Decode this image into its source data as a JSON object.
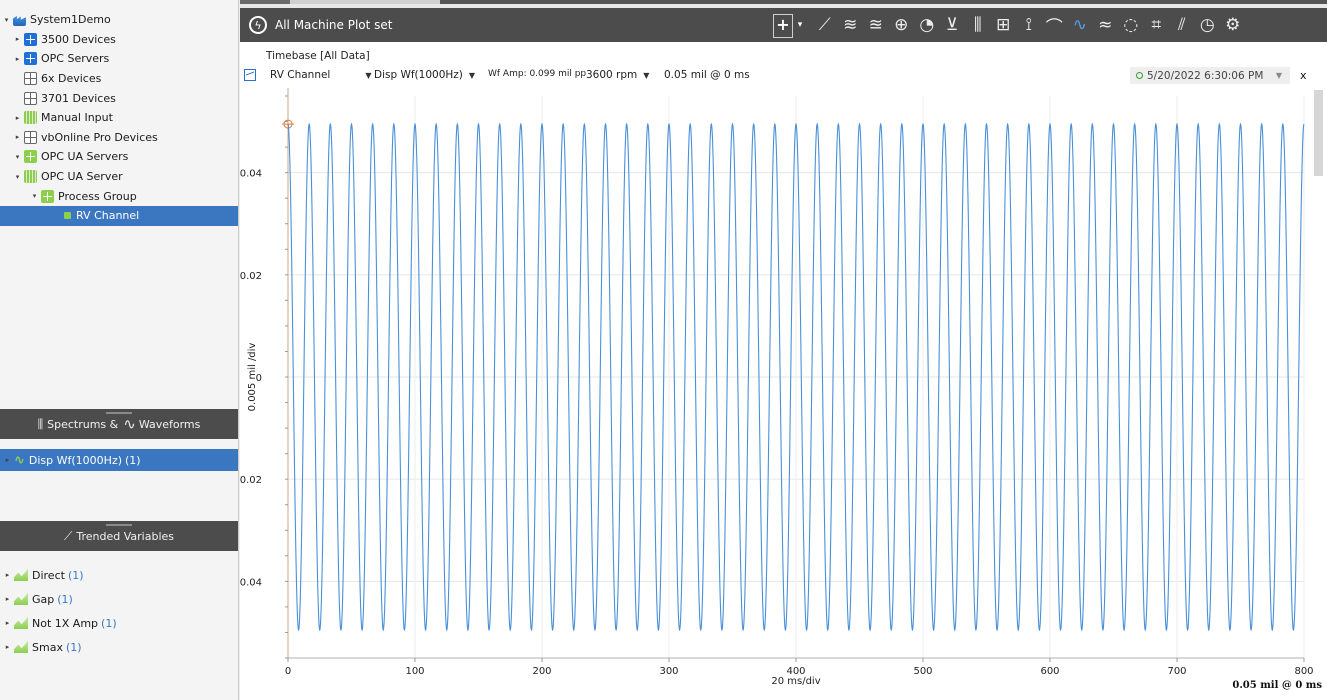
{
  "tree": {
    "items": [
      {
        "label": "System1Demo",
        "icon": "factory-icon",
        "icon_class": "ico-root",
        "depth": 0,
        "caret": "▾",
        "selected": false
      },
      {
        "label": "3500 Devices",
        "icon": "device-group-icon",
        "icon_class": "ico-blue",
        "depth": 1,
        "caret": "▸",
        "selected": false
      },
      {
        "label": "OPC Servers",
        "icon": "device-group-icon",
        "icon_class": "ico-blue",
        "depth": 1,
        "caret": "▸",
        "selected": false
      },
      {
        "label": "6x Devices",
        "icon": "device-group-icon",
        "icon_class": "ico-gray",
        "depth": 1,
        "caret": "",
        "selected": false
      },
      {
        "label": "3701 Devices",
        "icon": "device-group-icon",
        "icon_class": "ico-gray",
        "depth": 1,
        "caret": "",
        "selected": false
      },
      {
        "label": "Manual Input",
        "icon": "manual-input-icon",
        "icon_class": "ico-bars",
        "depth": 1,
        "caret": "▸",
        "selected": false
      },
      {
        "label": "vbOnline Pro Devices",
        "icon": "device-group-icon",
        "icon_class": "ico-gray",
        "depth": 1,
        "caret": "▸",
        "selected": false
      },
      {
        "label": "OPC UA Servers",
        "icon": "device-group-icon",
        "icon_class": "ico-green",
        "depth": 1,
        "caret": "▾",
        "selected": false
      },
      {
        "label": "OPC UA Server",
        "icon": "server-icon",
        "icon_class": "ico-bars",
        "depth": 2,
        "caret": "▾",
        "selected": false
      },
      {
        "label": "Process Group",
        "icon": "group-icon",
        "icon_class": "ico-green",
        "depth": 3,
        "caret": "▾",
        "selected": false
      },
      {
        "label": "RV Channel",
        "icon": "channel-icon",
        "icon_class": "ico-dot",
        "depth": 4,
        "caret": "",
        "selected": true
      }
    ]
  },
  "spectrums_panel": {
    "label_left": "Spectrums &",
    "label_right": "Waveforms",
    "items": [
      {
        "label": "Disp Wf(1000Hz)",
        "count": "(1)",
        "selected": true
      }
    ]
  },
  "trended_panel": {
    "label": "Trended Variables",
    "items": [
      {
        "label": "Direct",
        "count": "(1)"
      },
      {
        "label": "Gap",
        "count": "(1)"
      },
      {
        "label": "Not 1X Amp",
        "count": "(1)"
      },
      {
        "label": "Smax",
        "count": "(1)"
      }
    ]
  },
  "plot_window": {
    "title": "All Machine Plot set",
    "timebase": "Timebase  [All Data]",
    "channel": "RV Channel",
    "measurement": "Disp Wf(1000Hz)",
    "wf_amp": "Wf Amp: 0.099 mil pp",
    "speed": "3600 rpm",
    "trigger": "0.05 mil @ 0 ms",
    "timestamp": "5/20/2022 6:30:06 PM",
    "close_label": "x"
  },
  "toolbar": {
    "plus_label": "+",
    "dropdown_label": "▾",
    "icons": [
      {
        "name": "trend-plot-icon",
        "glyph": "⟋",
        "active": false
      },
      {
        "name": "multi-trend-plot-icon",
        "glyph": "≋",
        "active": false
      },
      {
        "name": "waterfall-trend-plot-icon",
        "glyph": "≊",
        "active": false
      },
      {
        "name": "polar-plot-icon",
        "glyph": "⊕",
        "active": false
      },
      {
        "name": "gauge-plot-icon",
        "glyph": "◔",
        "active": false
      },
      {
        "name": "xy-plot-icon",
        "glyph": "⊻",
        "active": false
      },
      {
        "name": "spectrum-plot-icon",
        "glyph": "⫼",
        "active": false
      },
      {
        "name": "bar-plot-icon",
        "glyph": "⊞",
        "active": false
      },
      {
        "name": "orbit-timebase-plot-icon",
        "glyph": "⟟",
        "active": false
      },
      {
        "name": "bode-plot-icon",
        "glyph": "⌒",
        "active": false
      },
      {
        "name": "timebase-plot-icon",
        "glyph": "∿",
        "active": true
      },
      {
        "name": "full-spectrum-plot-icon",
        "glyph": "≈",
        "active": false
      },
      {
        "name": "orbit-plot-icon",
        "glyph": "◌",
        "active": false
      },
      {
        "name": "shaft-centerline-plot-icon",
        "glyph": "⌗",
        "active": false
      },
      {
        "name": "cascade-plot-icon",
        "glyph": "⫽",
        "active": false
      },
      {
        "name": "clock-plot-icon",
        "glyph": "◷",
        "active": false
      },
      {
        "name": "settings-plot-icon",
        "glyph": "⚙",
        "active": false
      }
    ]
  },
  "colors": {
    "accent": "#3a77c0",
    "waveform": "#4a90d9",
    "header_dark": "#4c4c4c",
    "tree_green": "#8ccf4d"
  },
  "chart_data": {
    "type": "line",
    "xlabel": "20 ms/div",
    "ylabel": "0.005 mil /div",
    "xlim": [
      0,
      800
    ],
    "ylim": [
      -0.055,
      0.055
    ],
    "x_ticks": [
      0,
      100,
      200,
      300,
      400,
      500,
      600,
      700,
      800
    ],
    "x_tick_labels": [
      "0",
      "100",
      "200",
      "300",
      "400",
      "500",
      "600",
      "700",
      "800"
    ],
    "y_ticks": [
      0.04,
      0.02,
      0,
      -0.02,
      -0.04
    ],
    "y_tick_labels": [
      "0.04",
      "0.02",
      "0",
      "0.02",
      "0.04"
    ],
    "corner_label": "0.05 mil @ 0 ms",
    "grid": true,
    "series": [
      {
        "amplitude": 0.0495,
        "frequency_hz": 60,
        "phase_deg": 0,
        "x_start": 0,
        "x_end": 800
      }
    ]
  }
}
